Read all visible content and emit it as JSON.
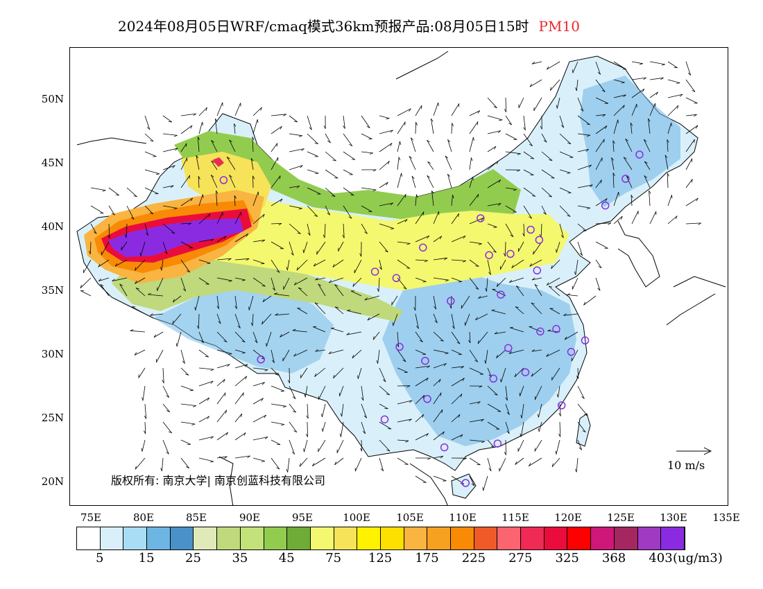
{
  "title": {
    "main": "2024年08月05日WRF/cmaq模式36km预报产品:08月05日15时",
    "pollutant": "PM10"
  },
  "axes": {
    "lat_labels": [
      "50N",
      "45N",
      "40N",
      "35N",
      "30N",
      "25N",
      "20N"
    ],
    "lon_labels": [
      "75E",
      "80E",
      "85E",
      "90E",
      "95E",
      "100E",
      "105E",
      "110E",
      "115E",
      "120E",
      "125E",
      "130E",
      "135E"
    ]
  },
  "copyright": "版权所有: 南京大学| 南京创蓝科技有限公司",
  "wind_scale": {
    "label": "10 m/s"
  },
  "colorbar": {
    "colors": [
      "#ffffff",
      "#d9f0fb",
      "#a9dcf5",
      "#6db5e3",
      "#4a91c9",
      "#dfeab8",
      "#bfd97c",
      "#c4e27a",
      "#92cc4f",
      "#6fac37",
      "#f3f86f",
      "#f6e35a",
      "#fef200",
      "#fde000",
      "#f9b441",
      "#f7a120",
      "#f88a05",
      "#f05a28",
      "#fc6470",
      "#ee2a55",
      "#ea0c3c",
      "#ff0000",
      "#cf1779",
      "#a4275f",
      "#a03ac3",
      "#8a2be2"
    ],
    "labels": [
      "5",
      "15",
      "25",
      "35",
      "45",
      "75",
      "125",
      "175",
      "225",
      "275",
      "325",
      "368",
      "403"
    ],
    "unit": "(ug/m3)"
  },
  "stations": [
    {
      "lon": 87.6,
      "lat": 43.8
    },
    {
      "lon": 126.6,
      "lat": 45.8
    },
    {
      "lon": 125.3,
      "lat": 43.9
    },
    {
      "lon": 123.4,
      "lat": 41.8
    },
    {
      "lon": 111.7,
      "lat": 40.8
    },
    {
      "lon": 116.4,
      "lat": 39.9
    },
    {
      "lon": 117.2,
      "lat": 39.1
    },
    {
      "lon": 114.5,
      "lat": 38.0
    },
    {
      "lon": 112.5,
      "lat": 37.9
    },
    {
      "lon": 106.3,
      "lat": 38.5
    },
    {
      "lon": 101.8,
      "lat": 36.6
    },
    {
      "lon": 103.8,
      "lat": 36.1
    },
    {
      "lon": 117.0,
      "lat": 36.7
    },
    {
      "lon": 113.6,
      "lat": 34.8
    },
    {
      "lon": 108.9,
      "lat": 34.3
    },
    {
      "lon": 104.1,
      "lat": 30.7
    },
    {
      "lon": 106.5,
      "lat": 29.6
    },
    {
      "lon": 114.3,
      "lat": 30.6
    },
    {
      "lon": 117.3,
      "lat": 31.9
    },
    {
      "lon": 118.8,
      "lat": 32.1
    },
    {
      "lon": 121.5,
      "lat": 31.2
    },
    {
      "lon": 120.2,
      "lat": 30.3
    },
    {
      "lon": 91.1,
      "lat": 29.7
    },
    {
      "lon": 112.9,
      "lat": 28.2
    },
    {
      "lon": 115.9,
      "lat": 28.7
    },
    {
      "lon": 119.3,
      "lat": 26.1
    },
    {
      "lon": 106.7,
      "lat": 26.6
    },
    {
      "lon": 102.7,
      "lat": 25.0
    },
    {
      "lon": 108.3,
      "lat": 22.8
    },
    {
      "lon": 113.3,
      "lat": 23.1
    },
    {
      "lon": 110.3,
      "lat": 20.0
    }
  ],
  "colors": {
    "pollutant": "#e8262b",
    "station": "#8a2be2"
  }
}
